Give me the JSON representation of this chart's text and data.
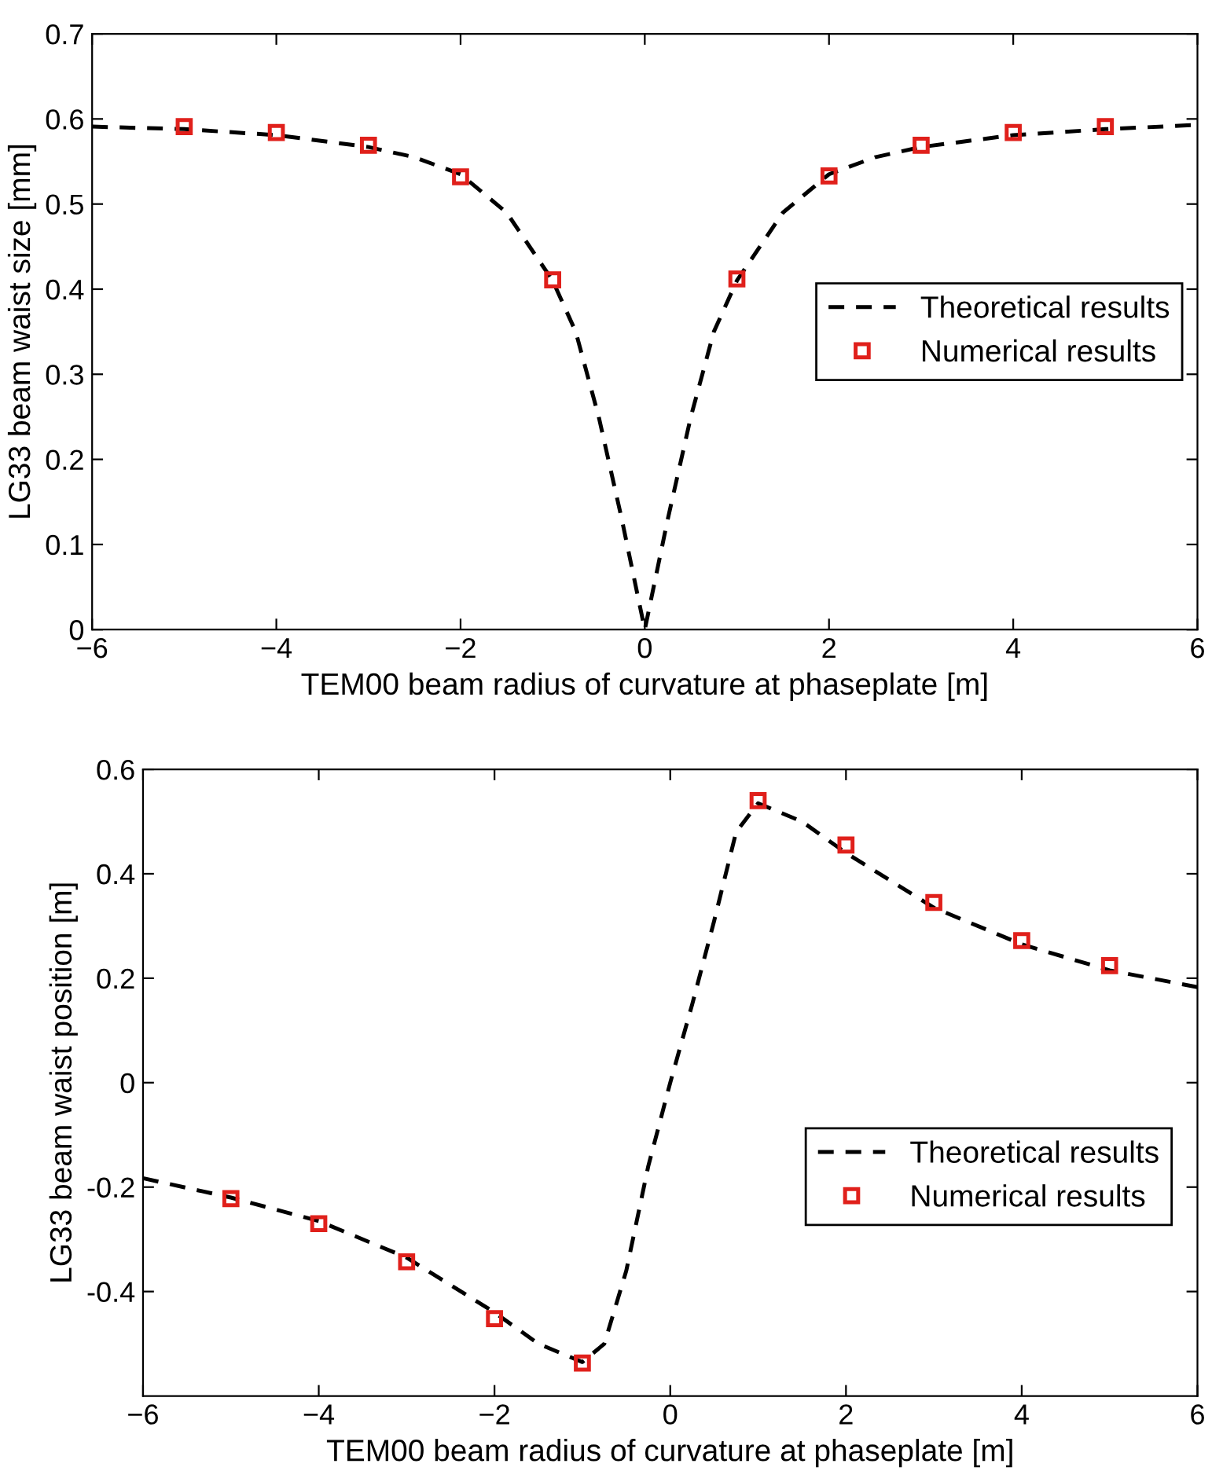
{
  "chart_data": [
    {
      "type": "line",
      "xlabel": "TEM00 beam radius of curvature at phaseplate [m]",
      "ylabel": "LG33 beam waist size [mm]",
      "xlim": [
        -6,
        6
      ],
      "xticks": [
        {
          "value": -6,
          "label": "−6"
        },
        {
          "value": -4,
          "label": "−4"
        },
        {
          "value": -2,
          "label": "−2"
        },
        0,
        2,
        4,
        6
      ],
      "ylim": [
        0,
        0.7
      ],
      "yticks": [
        0,
        0.1,
        0.2,
        0.3,
        0.4,
        0.5,
        0.6,
        0.7
      ],
      "grid": false,
      "legend": "right",
      "series": [
        {
          "name": "Theoretical results",
          "color": "#000000",
          "line_style": "dashed",
          "marker": "none",
          "x": [
            -6,
            -5,
            -4,
            -3,
            -2.5,
            -2,
            -1.5,
            -1,
            -0.75,
            -0.5,
            -0.25,
            0,
            0.25,
            0.5,
            0.75,
            1,
            1.5,
            2,
            2.5,
            3,
            4,
            5,
            6
          ],
          "values": [
            0.591,
            0.588,
            0.581,
            0.567,
            0.555,
            0.535,
            0.49,
            0.41,
            0.35,
            0.25,
            0.13,
            0,
            0.13,
            0.25,
            0.35,
            0.41,
            0.49,
            0.535,
            0.555,
            0.567,
            0.581,
            0.588,
            0.593
          ]
        },
        {
          "name": "Numerical results",
          "type": "scatter",
          "color": "#e0201b",
          "marker": "square",
          "x": [
            -5,
            -4,
            -3,
            -2,
            -1,
            1,
            2,
            3,
            4,
            5
          ],
          "values": [
            0.591,
            0.584,
            0.569,
            0.532,
            0.411,
            0.412,
            0.533,
            0.569,
            0.584,
            0.591
          ]
        }
      ]
    },
    {
      "type": "line",
      "xlabel": "TEM00 beam radius of curvature at phaseplate [m]",
      "ylabel": "LG33 beam waist position [m]",
      "xlim": [
        -6,
        6
      ],
      "xticks": [
        {
          "value": -6,
          "label": "−6"
        },
        {
          "value": -4,
          "label": "−4"
        },
        {
          "value": -2,
          "label": "−2"
        },
        0,
        2,
        4,
        6
      ],
      "ylim": [
        -0.6,
        0.6
      ],
      "yticks": [
        {
          "value": -0.4,
          "label": "-0.4"
        },
        {
          "value": -0.2,
          "label": "-0.2"
        },
        0,
        0.2,
        0.4,
        0.6
      ],
      "grid": false,
      "legend": "right",
      "series": [
        {
          "name": "Theoretical results",
          "color": "#000000",
          "line_style": "dashed",
          "marker": "none",
          "x": [
            -6,
            -5,
            -4,
            -3,
            -2,
            -1.5,
            -1,
            -0.75,
            -0.5,
            -0.25,
            0,
            0.25,
            0.5,
            0.75,
            1,
            1.5,
            2,
            3,
            4,
            5,
            6
          ],
          "values": [
            -0.183,
            -0.22,
            -0.265,
            -0.335,
            -0.44,
            -0.5,
            -0.535,
            -0.5,
            -0.36,
            -0.16,
            0,
            0.15,
            0.31,
            0.48,
            0.535,
            0.5,
            0.44,
            0.335,
            0.265,
            0.215,
            0.183
          ]
        },
        {
          "name": "Numerical results",
          "type": "scatter",
          "color": "#e0201b",
          "marker": "square",
          "x": [
            -5,
            -4,
            -3,
            -2,
            -1,
            1,
            2,
            3,
            4,
            5
          ],
          "values": [
            -0.222,
            -0.27,
            -0.343,
            -0.452,
            -0.537,
            0.54,
            0.455,
            0.345,
            0.272,
            0.224
          ]
        }
      ]
    }
  ]
}
